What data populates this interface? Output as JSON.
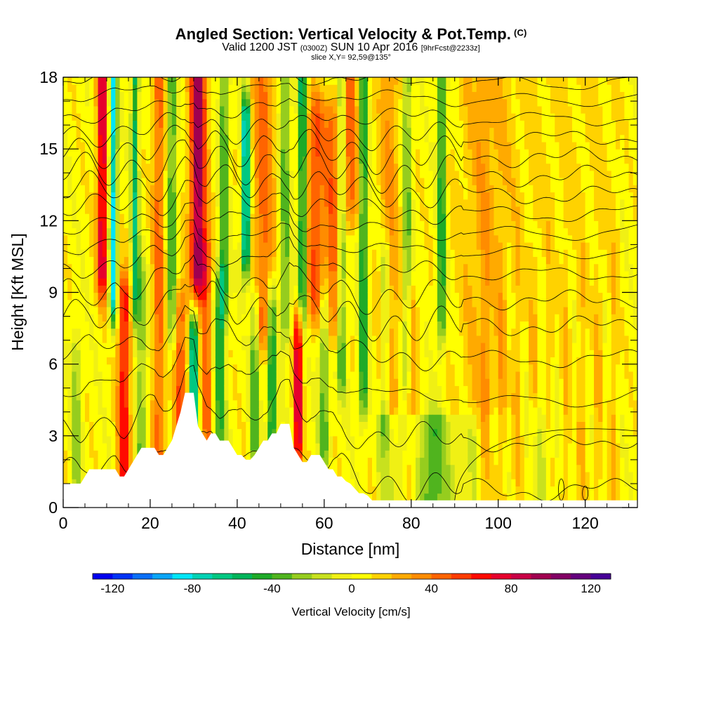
{
  "title": {
    "main": "Angled Section: Vertical Velocity & Pot.Temp.",
    "unit": "(C)",
    "valid_prefix": "Valid 1200 JST",
    "valid_utc": "(0300Z)",
    "valid_date": "SUN 10 Apr 2016",
    "forecast": "[9hrFcst@2233z]",
    "slice": "slice X,Y= 92,59@135°"
  },
  "chart_data": {
    "type": "heatmap",
    "xlabel": "Distance [nm]",
    "ylabel": "Height [Kft MSL]",
    "xlim": [
      0,
      132
    ],
    "ylim": [
      0,
      18
    ],
    "x_ticks": [
      0,
      20,
      40,
      60,
      80,
      100,
      120
    ],
    "y_ticks": [
      0,
      3,
      6,
      9,
      12,
      15,
      18
    ],
    "colorbar": {
      "label": "Vertical Velocity [cm/s]",
      "range": [
        -130,
        130
      ],
      "step": 10,
      "tick_values": [
        -120,
        -80,
        -40,
        0,
        40,
        80,
        120
      ],
      "tick_labels": [
        "-120",
        "-80",
        "-40",
        "0",
        "40",
        "80",
        "120"
      ],
      "colors": [
        "#0000ee",
        "#0033f5",
        "#0a6ff7",
        "#0aa5f7",
        "#00e6f7",
        "#00d2b4",
        "#00c882",
        "#00b45a",
        "#1eaa28",
        "#50b41e",
        "#96cd1e",
        "#c8e11e",
        "#f0f014",
        "#ffff00",
        "#ffd200",
        "#ffaa00",
        "#ff8c00",
        "#ff6400",
        "#ff3c00",
        "#ff0a00",
        "#e6002d",
        "#c80046",
        "#a00050",
        "#820064",
        "#64007d",
        "#460096"
      ]
    },
    "terrain": [
      [
        0,
        1.0
      ],
      [
        1,
        1.0
      ],
      [
        2,
        1.0
      ],
      [
        3,
        1.0
      ],
      [
        4,
        1.0
      ],
      [
        5,
        1.3
      ],
      [
        6,
        1.6
      ],
      [
        7,
        1.6
      ],
      [
        8,
        1.6
      ],
      [
        9,
        1.6
      ],
      [
        10,
        1.6
      ],
      [
        11,
        1.6
      ],
      [
        12,
        1.6
      ],
      [
        13,
        1.3
      ],
      [
        14,
        1.3
      ],
      [
        15,
        1.6
      ],
      [
        16,
        1.9
      ],
      [
        17,
        2.2
      ],
      [
        18,
        2.5
      ],
      [
        19,
        2.5
      ],
      [
        20,
        2.5
      ],
      [
        21,
        2.5
      ],
      [
        22,
        2.2
      ],
      [
        23,
        2.2
      ],
      [
        24,
        2.5
      ],
      [
        25,
        2.8
      ],
      [
        26,
        3.4
      ],
      [
        27,
        4.0
      ],
      [
        28,
        4.8
      ],
      [
        29,
        4.8
      ],
      [
        30,
        4.8
      ],
      [
        31,
        3.4
      ],
      [
        32,
        3.1
      ],
      [
        33,
        2.8
      ],
      [
        34,
        3.1
      ],
      [
        35,
        3.1
      ],
      [
        36,
        2.8
      ],
      [
        37,
        2.8
      ],
      [
        38,
        2.8
      ],
      [
        39,
        2.5
      ],
      [
        40,
        2.2
      ],
      [
        41,
        2.2
      ],
      [
        42,
        2.0
      ],
      [
        43,
        2.0
      ],
      [
        44,
        2.2
      ],
      [
        45,
        2.5
      ],
      [
        46,
        2.8
      ],
      [
        47,
        2.8
      ],
      [
        48,
        3.1
      ],
      [
        49,
        3.1
      ],
      [
        50,
        3.5
      ],
      [
        51,
        3.5
      ],
      [
        52,
        3.5
      ],
      [
        53,
        2.5
      ],
      [
        54,
        2.2
      ],
      [
        55,
        1.9
      ],
      [
        56,
        1.9
      ],
      [
        57,
        2.2
      ],
      [
        58,
        2.2
      ],
      [
        59,
        2.2
      ],
      [
        60,
        1.9
      ],
      [
        61,
        1.6
      ],
      [
        62,
        1.6
      ],
      [
        63,
        1.3
      ],
      [
        64,
        1.3
      ],
      [
        65,
        1.1
      ],
      [
        66,
        1.0
      ],
      [
        67,
        0.8
      ],
      [
        68,
        0.6
      ],
      [
        69,
        0.6
      ],
      [
        70,
        0.5
      ],
      [
        71,
        0.3
      ],
      [
        72,
        0.3
      ],
      [
        132,
        0.3
      ]
    ],
    "updrafts": [
      {
        "x": 14,
        "z0": 1.5,
        "z1": 8.5,
        "amp": 65,
        "width": 1.4
      },
      {
        "x": 9,
        "z0": 10,
        "z1": 18,
        "amp": 80,
        "width": 1.2
      },
      {
        "x": 22,
        "z0": 1.5,
        "z1": 18,
        "amp": 40,
        "width": 1.4
      },
      {
        "x": 27,
        "z0": 3,
        "z1": 8,
        "amp": 45,
        "width": 1.5
      },
      {
        "x": 31,
        "z0": 10,
        "z1": 18,
        "amp": 95,
        "width": 1.8
      },
      {
        "x": 33,
        "z0": 3,
        "z1": 10,
        "amp": 40,
        "width": 1.2
      },
      {
        "x": 46,
        "z0": 8,
        "z1": 18,
        "amp": 40,
        "width": 2.5
      },
      {
        "x": 54,
        "z0": 3,
        "z1": 7,
        "amp": 85,
        "width": 0.9
      },
      {
        "x": 58,
        "z0": 9,
        "z1": 16,
        "amp": 45,
        "width": 2.0
      },
      {
        "x": 62,
        "z0": 8,
        "z1": 16,
        "amp": 40,
        "width": 2.0
      },
      {
        "x": 66,
        "z0": 13,
        "z1": 18,
        "amp": 40,
        "width": 2.0
      },
      {
        "x": 75,
        "z0": 5,
        "z1": 18,
        "amp": 25,
        "width": 2.5
      },
      {
        "x": 80,
        "z0": 1,
        "z1": 8,
        "amp": 25,
        "width": 1.5
      },
      {
        "x": 96,
        "z0": 5,
        "z1": 18,
        "amp": 15,
        "width": 6.0
      }
    ],
    "downdrafts": [
      {
        "x": 11.5,
        "z0": 9,
        "z1": 18,
        "amp": -90,
        "width": 0.9
      },
      {
        "x": 16.5,
        "z0": 9,
        "z1": 18,
        "amp": -60,
        "width": 0.9
      },
      {
        "x": 18,
        "z0": 2,
        "z1": 9,
        "amp": -35,
        "width": 1.2
      },
      {
        "x": 25,
        "z0": 8,
        "z1": 18,
        "amp": -50,
        "width": 1.0
      },
      {
        "x": 30,
        "z0": 2.5,
        "z1": 7,
        "amp": -90,
        "width": 0.9
      },
      {
        "x": 36,
        "z0": 2,
        "z1": 9,
        "amp": -50,
        "width": 1.2
      },
      {
        "x": 37,
        "z0": 9,
        "z1": 18,
        "amp": -50,
        "width": 1.0
      },
      {
        "x": 42,
        "z0": 11,
        "z1": 16,
        "amp": -100,
        "width": 0.9
      },
      {
        "x": 44,
        "z0": 3,
        "z1": 8,
        "amp": -50,
        "width": 1.0
      },
      {
        "x": 48,
        "z0": 3,
        "z1": 8,
        "amp": -65,
        "width": 1.0
      },
      {
        "x": 51,
        "z0": 8,
        "z1": 18,
        "amp": -40,
        "width": 1.2
      },
      {
        "x": 55,
        "z0": 9,
        "z1": 18,
        "amp": -70,
        "width": 0.9
      },
      {
        "x": 60,
        "z0": 3,
        "z1": 8,
        "amp": -45,
        "width": 1.2
      },
      {
        "x": 64,
        "z0": 6,
        "z1": 18,
        "amp": -50,
        "width": 1.0
      },
      {
        "x": 69,
        "z0": 5,
        "z1": 18,
        "amp": -60,
        "width": 1.0
      },
      {
        "x": 74,
        "z0": 4,
        "z1": 10,
        "amp": -40,
        "width": 1.0
      },
      {
        "x": 79,
        "z0": 6,
        "z1": 18,
        "amp": -40,
        "width": 1.0
      },
      {
        "x": 87,
        "z0": 8,
        "z1": 18,
        "amp": -60,
        "width": 0.9
      },
      {
        "x": 3,
        "z0": 1,
        "z1": 6,
        "amp": -30,
        "width": 1.2
      },
      {
        "x": 85,
        "z0": 0.3,
        "z1": 3,
        "amp": -30,
        "width": 3.0
      },
      {
        "x": 110,
        "z0": 0.3,
        "z1": 3,
        "amp": -20,
        "width": 3.0
      }
    ],
    "isentrope_levels": [
      0.8,
      2.8,
      4.6,
      6.2,
      7.6,
      8.7,
      9.8,
      10.7,
      11.5,
      12.3,
      13.1,
      13.9,
      14.7,
      15.5,
      16.3,
      17.1,
      17.8
    ]
  }
}
